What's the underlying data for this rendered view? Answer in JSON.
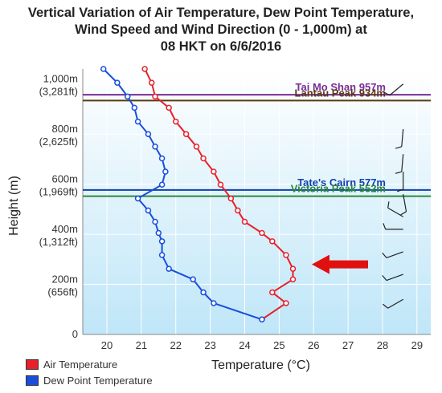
{
  "title_lines": [
    "Vertical Variation of Air Temperature, Dew Point Temperature,",
    "Wind Speed and Wind Direction (0 - 1,000m) at",
    "08 HKT on 6/6/2016"
  ],
  "colors": {
    "air": "#e8202a",
    "dew": "#1a4ddd",
    "tai_mo_shan": "#7a2c96",
    "lantau_peak": "#5a3a10",
    "tates_cairn": "#1040b0",
    "victoria_peak": "#2a8a3a",
    "arrow": "#e01010"
  },
  "legend": {
    "air": "Air Temperature",
    "dew": "Dew Point Temperature"
  },
  "chart_data": {
    "type": "line",
    "title": "Vertical Variation of Air Temperature, Dew Point Temperature, Wind Speed and Wind Direction (0 - 1,000m) at 08 HKT on 6/6/2016",
    "xlabel": "Temperature (°C)",
    "ylabel": "Height (m)",
    "xlim": [
      19.3,
      29.4
    ],
    "ylim": [
      0,
      1060
    ],
    "x_ticks": [
      20,
      21,
      22,
      23,
      24,
      25,
      26,
      27,
      28,
      29
    ],
    "y_ticks": [
      {
        "value": 0,
        "lines": [
          "0"
        ]
      },
      {
        "value": 200,
        "lines": [
          "200m",
          "(656ft)"
        ]
      },
      {
        "value": 400,
        "lines": [
          "400m",
          "(1,312ft)"
        ]
      },
      {
        "value": 600,
        "lines": [
          "600m",
          "(1,969ft)"
        ]
      },
      {
        "value": 800,
        "lines": [
          "800m",
          "(2,625ft)"
        ]
      },
      {
        "value": 1000,
        "lines": [
          "1,000m",
          "(3,281ft)"
        ]
      }
    ],
    "grid": true,
    "series": [
      {
        "name": "Air Temperature",
        "points": [
          [
            24.5,
            60
          ],
          [
            25.2,
            125
          ],
          [
            24.8,
            168
          ],
          [
            25.4,
            220
          ],
          [
            25.4,
            262
          ],
          [
            25.2,
            317
          ],
          [
            24.8,
            372
          ],
          [
            24.5,
            405
          ],
          [
            24.0,
            450
          ],
          [
            23.8,
            495
          ],
          [
            23.6,
            543
          ],
          [
            23.3,
            598
          ],
          [
            23.1,
            650
          ],
          [
            22.8,
            703
          ],
          [
            22.6,
            750
          ],
          [
            22.3,
            800
          ],
          [
            22.0,
            850
          ],
          [
            21.8,
            905
          ],
          [
            21.4,
            950
          ],
          [
            21.3,
            1005
          ],
          [
            21.1,
            1060
          ]
        ]
      },
      {
        "name": "Dew Point Temperature",
        "points": [
          [
            24.5,
            60
          ],
          [
            23.1,
            125
          ],
          [
            22.8,
            168
          ],
          [
            22.5,
            220
          ],
          [
            21.8,
            262
          ],
          [
            21.6,
            317
          ],
          [
            21.6,
            372
          ],
          [
            21.5,
            405
          ],
          [
            21.4,
            450
          ],
          [
            21.2,
            495
          ],
          [
            20.9,
            543
          ],
          [
            21.6,
            598
          ],
          [
            21.7,
            650
          ],
          [
            21.6,
            703
          ],
          [
            21.4,
            750
          ],
          [
            21.2,
            800
          ],
          [
            20.9,
            850
          ],
          [
            20.8,
            905
          ],
          [
            20.6,
            950
          ],
          [
            20.3,
            1005
          ],
          [
            19.9,
            1060
          ]
        ]
      }
    ],
    "reference_lines": [
      {
        "label": "Tai Mo Shan 957m",
        "height": 957,
        "color_key": "tai_mo_shan"
      },
      {
        "label": "Lantau Peak 934m",
        "height": 934,
        "color_key": "lantau_peak"
      },
      {
        "label": "Tate's Cairn 577m",
        "height": 577,
        "color_key": "tates_cairn"
      },
      {
        "label": "Victoria Peak 552m",
        "height": 552,
        "color_key": "victoria_peak"
      }
    ],
    "wind_barbs_x": 28.6,
    "wind_barbs": [
      {
        "height": 1000,
        "dir": 230
      },
      {
        "height": 820,
        "dir": 185
      },
      {
        "height": 720,
        "dir": 185
      },
      {
        "height": 650,
        "dir": 180
      },
      {
        "height": 560,
        "dir": 170
      },
      {
        "height": 470,
        "dir": 300
      },
      {
        "height": 420,
        "dir": 270
      },
      {
        "height": 330,
        "dir": 250
      },
      {
        "height": 240,
        "dir": 250
      },
      {
        "height": 140,
        "dir": 240
      }
    ],
    "arrow_pointing_at_height": 280
  }
}
